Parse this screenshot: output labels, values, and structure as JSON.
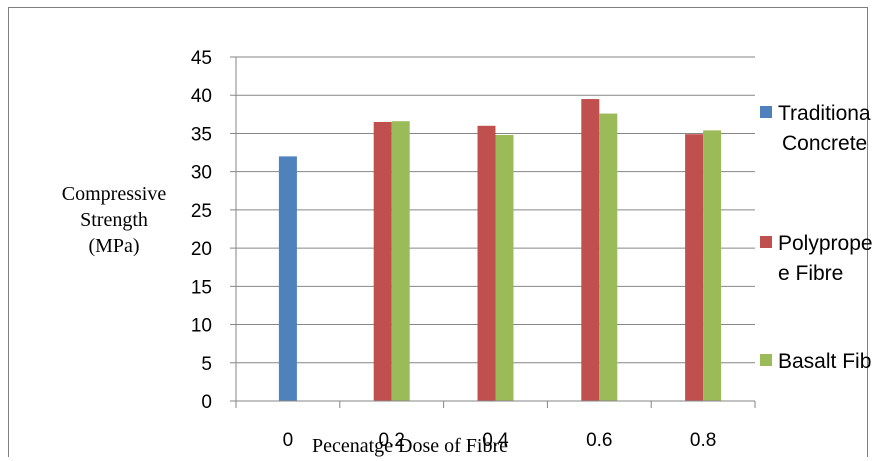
{
  "chart_data": {
    "type": "bar",
    "title": "",
    "xlabel": "Pecenatge Dose of Fibre",
    "ylabel_lines": [
      "Compressive",
      "Strength",
      "(MPa)"
    ],
    "categories": [
      "0",
      "0.2",
      "0.4",
      "0.6",
      "0.8"
    ],
    "ylim": [
      0,
      45
    ],
    "yticks": [
      0,
      5,
      10,
      15,
      20,
      25,
      30,
      35,
      40,
      45
    ],
    "grid": true,
    "legend_position": "right",
    "series": [
      {
        "name_lines": [
          "Traditional",
          "Concrete"
        ],
        "color": "#4f81bd",
        "values": [
          32,
          null,
          null,
          null,
          null
        ]
      },
      {
        "name_lines": [
          "Polypropelen",
          "e Fibre"
        ],
        "color": "#c0504d",
        "values": [
          null,
          36.5,
          36,
          39.5,
          34.9
        ]
      },
      {
        "name_lines": [
          "Basalt Fibre"
        ],
        "color": "#9bbb59",
        "values": [
          null,
          36.6,
          34.8,
          37.6,
          35.4
        ]
      }
    ]
  }
}
